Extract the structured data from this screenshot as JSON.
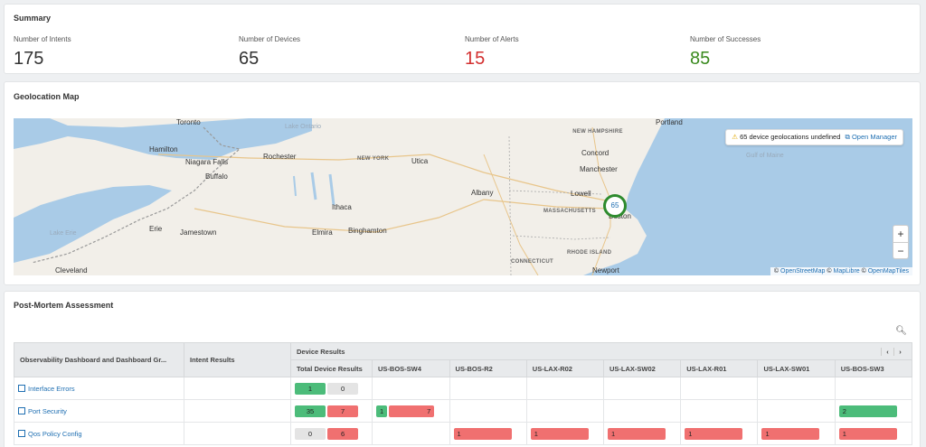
{
  "summary": {
    "title": "Summary",
    "metrics": [
      {
        "label": "Number of Intents",
        "value": "175",
        "color": "#333333"
      },
      {
        "label": "Number of Devices",
        "value": "65",
        "color": "#333333"
      },
      {
        "label": "Number of Alerts",
        "value": "15",
        "color": "#d32f2f"
      },
      {
        "label": "Number of Successes",
        "value": "85",
        "color": "#3a8a1e"
      }
    ]
  },
  "geo": {
    "title": "Geolocation Map",
    "banner": "65 device geolocations undefined",
    "open_manager": "Open Manager",
    "cluster_count": "65",
    "zoom_in": "+",
    "zoom_out": "−",
    "attribution": [
      "OpenStreetMap",
      "MapLibre",
      "OpenMapTiles"
    ],
    "cities": [
      "Toronto",
      "Hamilton",
      "Niagara Falls",
      "Buffalo",
      "Rochester",
      "Utica",
      "Ithaca",
      "Erie",
      "Jamestown",
      "Elmira",
      "Binghamton",
      "Albany",
      "Concord",
      "Manchester",
      "Lowell",
      "Boston",
      "Portland",
      "Cleveland",
      "Newport"
    ],
    "states": [
      "NEW YORK",
      "NEW HAMPSHIRE",
      "MASSACHUSETTS",
      "RHODE ISLAND",
      "CONNECTICUT"
    ],
    "water": [
      "Lake Ontario",
      "Lake Erie",
      "Gulf of Maine"
    ]
  },
  "pm": {
    "title": "Post-Mortem Assessment",
    "headers": {
      "dashboard": "Observability Dashboard and Dashboard Gr...",
      "intent": "Intent Results",
      "device_results": "Device Results",
      "total": "Total Device Results",
      "devices": [
        "US-BOS-SW4",
        "US-BOS-R2",
        "US-LAX-R02",
        "US-LAX-SW02",
        "US-LAX-R01",
        "US-LAX-SW01",
        "US-BOS-SW3"
      ]
    },
    "rows": [
      {
        "name": "Interface Errors",
        "total_ok": "1",
        "total_bad": "0",
        "total_bad_style": "grey",
        "devices": [
          "",
          "",
          "",
          "",
          "",
          "",
          ""
        ]
      },
      {
        "name": "Port Security",
        "total_ok": "35",
        "total_bad": "7",
        "total_bad_style": "red",
        "devices": [
          "1|7",
          "",
          "",
          "",
          "",
          "",
          "2"
        ]
      },
      {
        "name": "Qos Policy Config",
        "total_ok": "0",
        "total_bad": "6",
        "total_bad_style": "red",
        "devices": [
          "",
          "1",
          "1",
          "1",
          "1",
          "1",
          "1"
        ]
      }
    ]
  }
}
